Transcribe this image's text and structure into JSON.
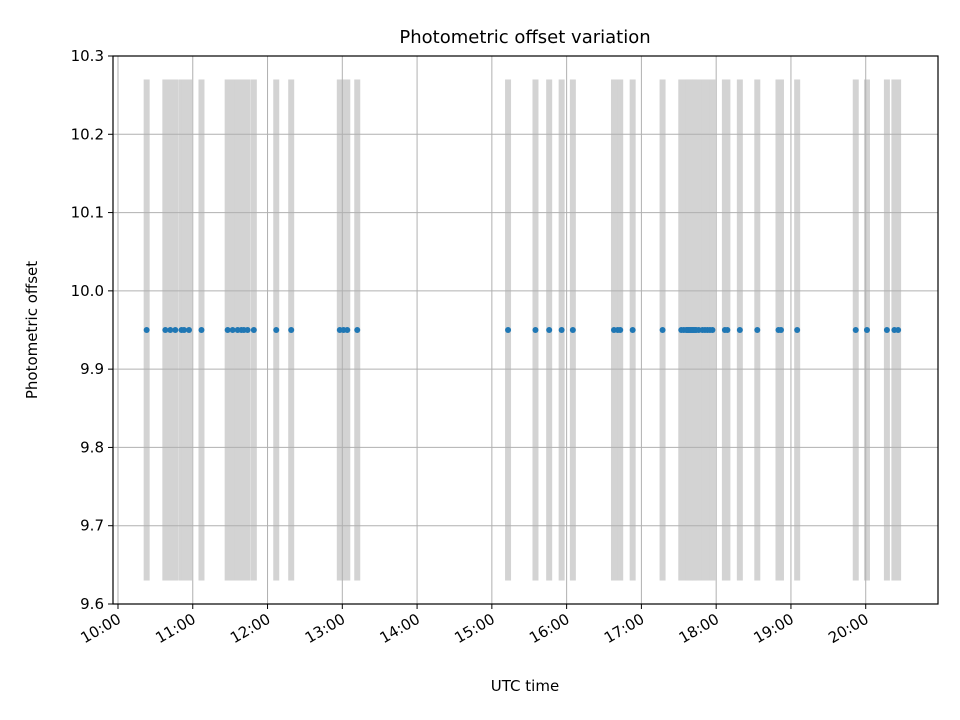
{
  "chart_data": {
    "type": "scatter",
    "title": "Photometric offset variation",
    "xlabel": "UTC time",
    "ylabel": "Photometric offset",
    "x_axis": {
      "type": "time",
      "min": "09:56",
      "max": "20:58",
      "ticks": [
        "10:00",
        "11:00",
        "12:00",
        "13:00",
        "14:00",
        "15:00",
        "16:00",
        "17:00",
        "18:00",
        "19:00",
        "20:00"
      ]
    },
    "ylim": [
      9.6,
      10.3
    ],
    "y_ticks": [
      "9.6",
      "9.7",
      "9.8",
      "9.9",
      "10.0",
      "10.1",
      "10.2",
      "10.3"
    ],
    "grid": true,
    "band_range": [
      9.63,
      10.27
    ],
    "marker_color": "#1f77b4",
    "band_color": "#d3d3d3",
    "series": [
      {
        "x": [
          "10:23",
          "10:38",
          "10:42",
          "10:46",
          "10:51",
          "10:53",
          "10:57",
          "11:07",
          "11:28",
          "11:32",
          "11:36",
          "11:39",
          "11:41",
          "11:44",
          "11:49",
          "12:07",
          "12:19",
          "12:58",
          "13:01",
          "13:04",
          "13:12",
          "15:13",
          "15:35",
          "15:46",
          "15:56",
          "16:05",
          "16:38",
          "16:41",
          "16:43",
          "16:53",
          "17:17",
          "17:32",
          "17:34",
          "17:36",
          "17:37",
          "17:38",
          "17:39",
          "17:40",
          "17:41",
          "17:42",
          "17:43",
          "17:44",
          "17:46",
          "17:49",
          "17:51",
          "17:53",
          "17:55",
          "17:57",
          "18:07",
          "18:09",
          "18:19",
          "18:33",
          "18:50",
          "18:52",
          "19:05",
          "19:52",
          "20:01",
          "20:17",
          "20:23",
          "20:26"
        ],
        "y": [
          9.95,
          9.95,
          9.95,
          9.95,
          9.95,
          9.95,
          9.95,
          9.95,
          9.95,
          9.95,
          9.95,
          9.95,
          9.95,
          9.95,
          9.95,
          9.95,
          9.95,
          9.95,
          9.95,
          9.95,
          9.95,
          9.95,
          9.95,
          9.95,
          9.95,
          9.95,
          9.95,
          9.95,
          9.95,
          9.95,
          9.95,
          9.95,
          9.95,
          9.95,
          9.95,
          9.95,
          9.95,
          9.95,
          9.95,
          9.95,
          9.95,
          9.95,
          9.95,
          9.95,
          9.95,
          9.95,
          9.95,
          9.95,
          9.95,
          9.95,
          9.95,
          9.95,
          9.95,
          9.95,
          9.95,
          9.95,
          9.95,
          9.95,
          9.95,
          9.95
        ]
      }
    ]
  }
}
